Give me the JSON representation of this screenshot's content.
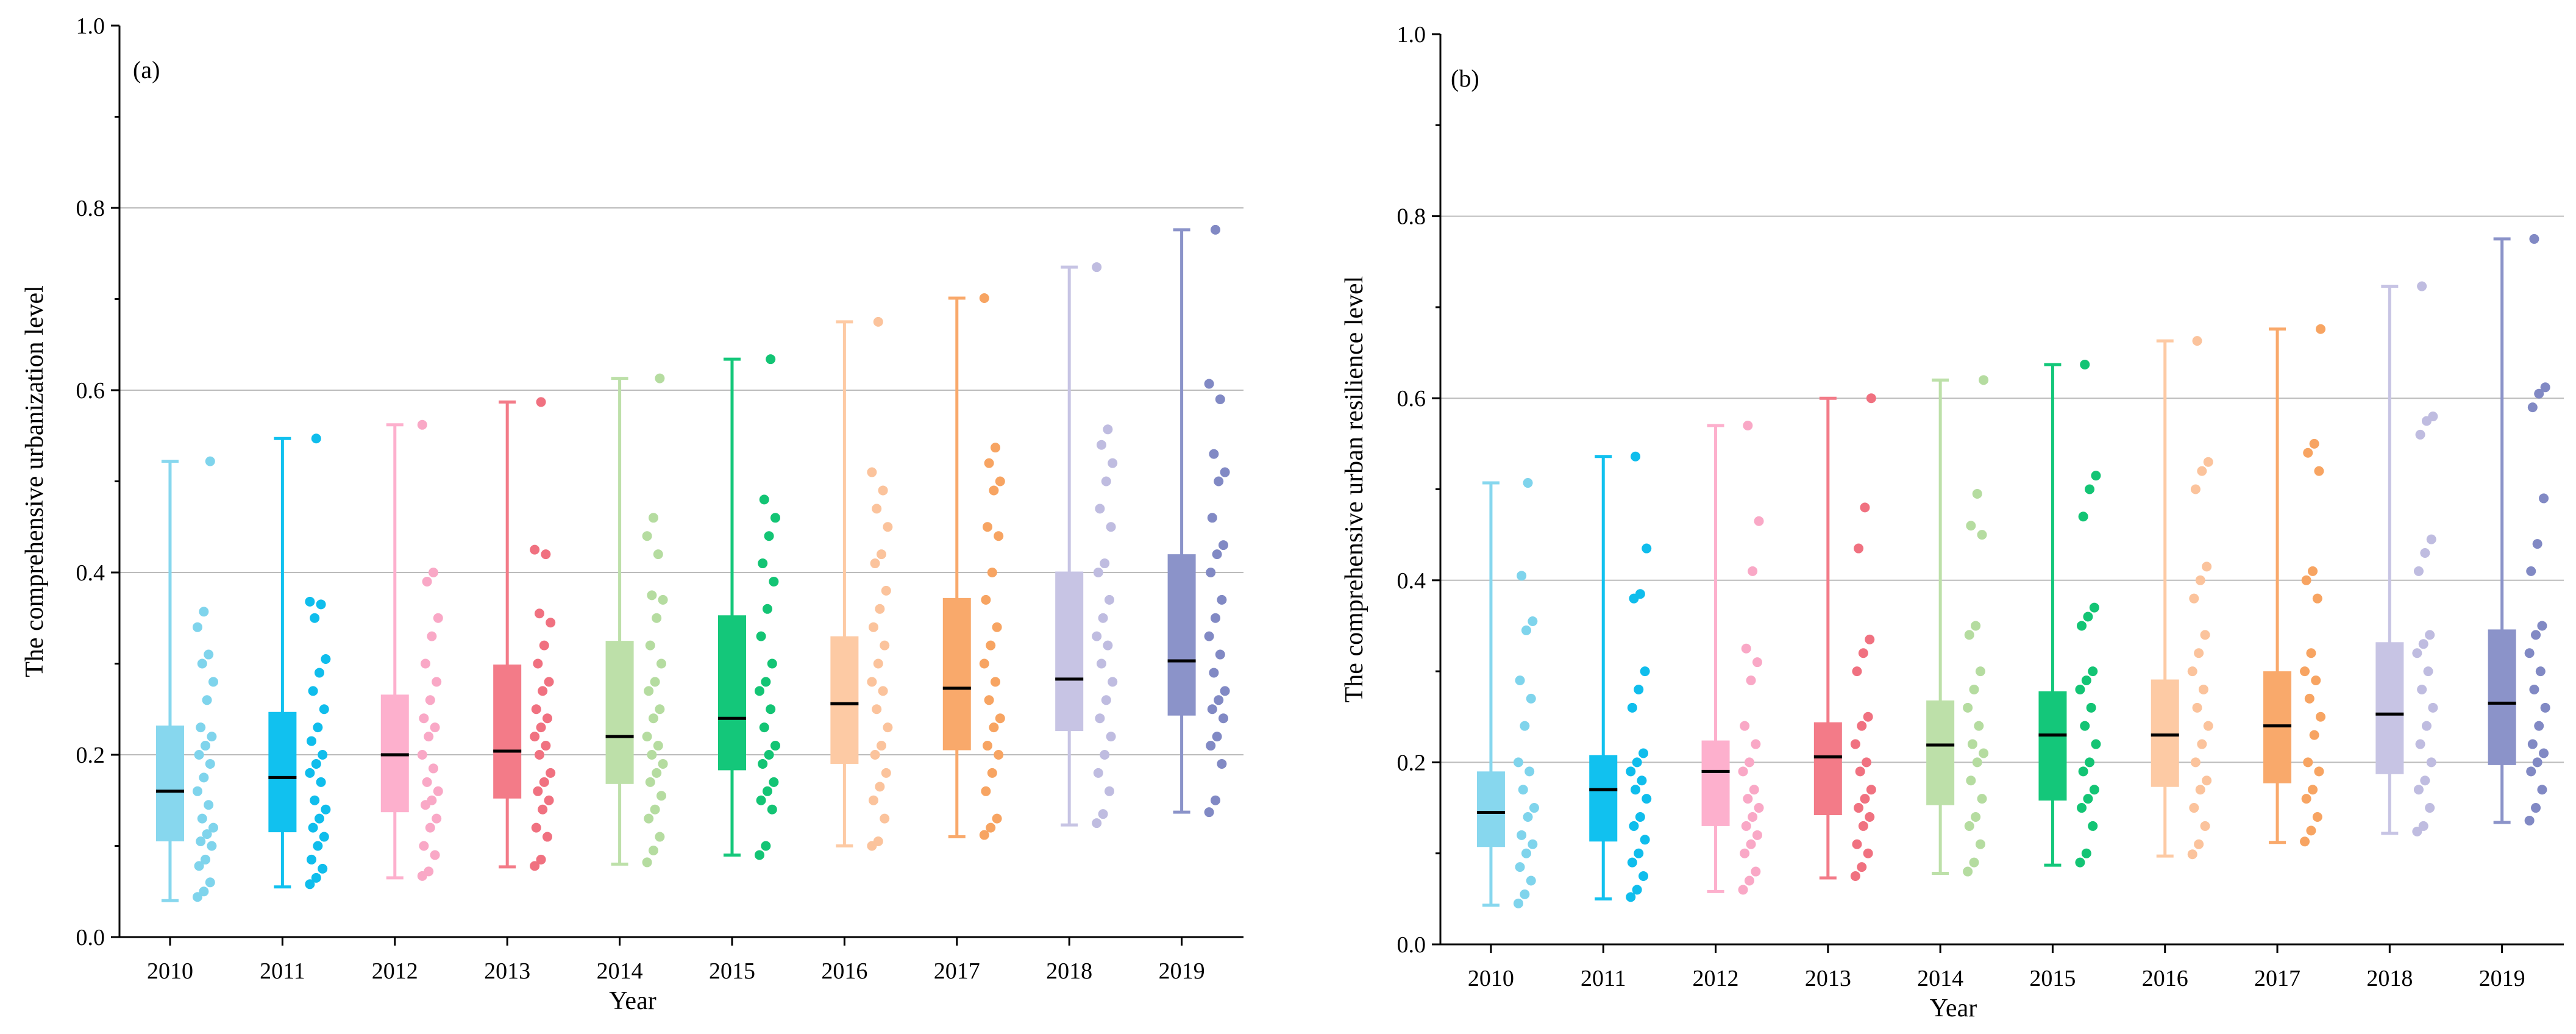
{
  "chart_data": [
    {
      "type": "box",
      "panel_label": "(a)",
      "xlabel": "Year",
      "ylabel": "The comprehensive urbanization level",
      "ylim": [
        0.0,
        1.0
      ],
      "yticks": [
        "0.0",
        "0.2",
        "0.4",
        "0.6",
        "0.8",
        "1.0"
      ],
      "categories": [
        "2010",
        "2011",
        "2012",
        "2013",
        "2014",
        "2015",
        "2016",
        "2017",
        "2018",
        "2019"
      ],
      "gridlines": [
        0.2,
        0.4,
        0.6,
        0.8
      ],
      "boxes": [
        {
          "year": "2010",
          "min": 0.04,
          "q1": 0.105,
          "median": 0.16,
          "q3": 0.232,
          "max": 0.522
        },
        {
          "year": "2011",
          "min": 0.055,
          "q1": 0.115,
          "median": 0.175,
          "q3": 0.247,
          "max": 0.547
        },
        {
          "year": "2012",
          "min": 0.065,
          "q1": 0.137,
          "median": 0.2,
          "q3": 0.266,
          "max": 0.562
        },
        {
          "year": "2013",
          "min": 0.077,
          "q1": 0.152,
          "median": 0.204,
          "q3": 0.299,
          "max": 0.587
        },
        {
          "year": "2014",
          "min": 0.08,
          "q1": 0.168,
          "median": 0.22,
          "q3": 0.325,
          "max": 0.613
        },
        {
          "year": "2015",
          "min": 0.09,
          "q1": 0.183,
          "median": 0.24,
          "q3": 0.353,
          "max": 0.634
        },
        {
          "year": "2016",
          "min": 0.1,
          "q1": 0.19,
          "median": 0.256,
          "q3": 0.33,
          "max": 0.675
        },
        {
          "year": "2017",
          "min": 0.11,
          "q1": 0.205,
          "median": 0.273,
          "q3": 0.372,
          "max": 0.701
        },
        {
          "year": "2018",
          "min": 0.123,
          "q1": 0.226,
          "median": 0.283,
          "q3": 0.401,
          "max": 0.735
        },
        {
          "year": "2019",
          "min": 0.137,
          "q1": 0.243,
          "median": 0.303,
          "q3": 0.42,
          "max": 0.776
        }
      ],
      "points": [
        [
          0.044,
          0.05,
          0.06,
          0.078,
          0.085,
          0.1,
          0.105,
          0.113,
          0.12,
          0.13,
          0.145,
          0.16,
          0.175,
          0.19,
          0.2,
          0.21,
          0.22,
          0.23,
          0.26,
          0.28,
          0.3,
          0.31,
          0.34,
          0.357,
          0.522
        ],
        [
          0.058,
          0.065,
          0.075,
          0.085,
          0.1,
          0.11,
          0.12,
          0.13,
          0.14,
          0.15,
          0.17,
          0.18,
          0.19,
          0.2,
          0.215,
          0.23,
          0.25,
          0.27,
          0.29,
          0.305,
          0.35,
          0.365,
          0.368,
          0.547
        ],
        [
          0.067,
          0.072,
          0.09,
          0.1,
          0.12,
          0.13,
          0.145,
          0.15,
          0.16,
          0.17,
          0.185,
          0.2,
          0.22,
          0.23,
          0.24,
          0.26,
          0.28,
          0.3,
          0.33,
          0.35,
          0.39,
          0.4,
          0.562
        ],
        [
          0.078,
          0.085,
          0.11,
          0.12,
          0.14,
          0.15,
          0.16,
          0.17,
          0.18,
          0.2,
          0.21,
          0.22,
          0.23,
          0.24,
          0.25,
          0.27,
          0.28,
          0.3,
          0.32,
          0.345,
          0.355,
          0.42,
          0.425,
          0.587
        ],
        [
          0.082,
          0.095,
          0.11,
          0.13,
          0.14,
          0.155,
          0.17,
          0.18,
          0.19,
          0.2,
          0.21,
          0.22,
          0.24,
          0.25,
          0.27,
          0.28,
          0.3,
          0.32,
          0.35,
          0.37,
          0.375,
          0.42,
          0.44,
          0.46,
          0.613
        ],
        [
          0.09,
          0.1,
          0.14,
          0.15,
          0.16,
          0.17,
          0.19,
          0.2,
          0.21,
          0.23,
          0.25,
          0.27,
          0.28,
          0.3,
          0.33,
          0.36,
          0.39,
          0.41,
          0.44,
          0.46,
          0.48,
          0.634
        ],
        [
          0.1,
          0.105,
          0.13,
          0.15,
          0.165,
          0.18,
          0.2,
          0.21,
          0.23,
          0.25,
          0.27,
          0.28,
          0.3,
          0.32,
          0.34,
          0.36,
          0.38,
          0.41,
          0.42,
          0.45,
          0.47,
          0.49,
          0.51,
          0.675
        ],
        [
          0.112,
          0.12,
          0.13,
          0.16,
          0.18,
          0.2,
          0.21,
          0.23,
          0.24,
          0.26,
          0.28,
          0.3,
          0.32,
          0.34,
          0.37,
          0.4,
          0.44,
          0.45,
          0.49,
          0.5,
          0.52,
          0.537,
          0.701
        ],
        [
          0.125,
          0.135,
          0.16,
          0.18,
          0.2,
          0.22,
          0.24,
          0.26,
          0.28,
          0.3,
          0.32,
          0.33,
          0.35,
          0.37,
          0.4,
          0.41,
          0.45,
          0.47,
          0.5,
          0.52,
          0.54,
          0.557,
          0.735
        ],
        [
          0.137,
          0.15,
          0.19,
          0.21,
          0.22,
          0.24,
          0.25,
          0.26,
          0.27,
          0.29,
          0.31,
          0.33,
          0.35,
          0.37,
          0.4,
          0.42,
          0.43,
          0.46,
          0.5,
          0.51,
          0.53,
          0.59,
          0.607,
          0.776
        ]
      ]
    },
    {
      "type": "box",
      "panel_label": "(b)",
      "xlabel": "Year",
      "ylabel": "The comprehensive urban resilience level",
      "ylim": [
        0.0,
        1.0
      ],
      "yticks": [
        "0.0",
        "0.2",
        "0.4",
        "0.6",
        "0.8",
        "1.0"
      ],
      "categories": [
        "2010",
        "2011",
        "2012",
        "2013",
        "2014",
        "2015",
        "2016",
        "2017",
        "2018",
        "2019"
      ],
      "gridlines": [
        0.2,
        0.4,
        0.6,
        0.8
      ],
      "boxes": [
        {
          "year": "2010",
          "min": 0.043,
          "q1": 0.107,
          "median": 0.145,
          "q3": 0.19,
          "max": 0.507
        },
        {
          "year": "2011",
          "min": 0.05,
          "q1": 0.113,
          "median": 0.17,
          "q3": 0.208,
          "max": 0.536
        },
        {
          "year": "2012",
          "min": 0.058,
          "q1": 0.13,
          "median": 0.19,
          "q3": 0.224,
          "max": 0.57
        },
        {
          "year": "2013",
          "min": 0.073,
          "q1": 0.142,
          "median": 0.206,
          "q3": 0.244,
          "max": 0.6
        },
        {
          "year": "2014",
          "min": 0.078,
          "q1": 0.153,
          "median": 0.219,
          "q3": 0.268,
          "max": 0.62
        },
        {
          "year": "2015",
          "min": 0.087,
          "q1": 0.158,
          "median": 0.23,
          "q3": 0.278,
          "max": 0.637
        },
        {
          "year": "2016",
          "min": 0.097,
          "q1": 0.173,
          "median": 0.23,
          "q3": 0.291,
          "max": 0.663
        },
        {
          "year": "2017",
          "min": 0.112,
          "q1": 0.177,
          "median": 0.24,
          "q3": 0.3,
          "max": 0.676
        },
        {
          "year": "2018",
          "min": 0.122,
          "q1": 0.187,
          "median": 0.253,
          "q3": 0.332,
          "max": 0.723
        },
        {
          "year": "2019",
          "min": 0.134,
          "q1": 0.197,
          "median": 0.265,
          "q3": 0.346,
          "max": 0.775
        }
      ],
      "points": [
        [
          0.045,
          0.055,
          0.07,
          0.085,
          0.1,
          0.11,
          0.12,
          0.14,
          0.15,
          0.17,
          0.19,
          0.2,
          0.24,
          0.27,
          0.29,
          0.345,
          0.355,
          0.405,
          0.507
        ],
        [
          0.052,
          0.06,
          0.075,
          0.09,
          0.1,
          0.115,
          0.13,
          0.14,
          0.16,
          0.17,
          0.18,
          0.19,
          0.2,
          0.21,
          0.26,
          0.28,
          0.3,
          0.38,
          0.385,
          0.435,
          0.536
        ],
        [
          0.06,
          0.07,
          0.08,
          0.1,
          0.11,
          0.12,
          0.13,
          0.14,
          0.15,
          0.16,
          0.17,
          0.19,
          0.2,
          0.22,
          0.24,
          0.29,
          0.31,
          0.325,
          0.41,
          0.465,
          0.57
        ],
        [
          0.075,
          0.085,
          0.1,
          0.11,
          0.13,
          0.14,
          0.15,
          0.16,
          0.17,
          0.19,
          0.2,
          0.22,
          0.24,
          0.25,
          0.3,
          0.32,
          0.335,
          0.435,
          0.48,
          0.6
        ],
        [
          0.08,
          0.09,
          0.11,
          0.13,
          0.14,
          0.16,
          0.18,
          0.2,
          0.21,
          0.22,
          0.24,
          0.26,
          0.28,
          0.3,
          0.34,
          0.35,
          0.45,
          0.46,
          0.495,
          0.62
        ],
        [
          0.09,
          0.1,
          0.13,
          0.15,
          0.16,
          0.17,
          0.19,
          0.2,
          0.22,
          0.24,
          0.26,
          0.28,
          0.29,
          0.3,
          0.35,
          0.36,
          0.37,
          0.47,
          0.5,
          0.515,
          0.637
        ],
        [
          0.099,
          0.11,
          0.13,
          0.15,
          0.17,
          0.18,
          0.2,
          0.22,
          0.24,
          0.26,
          0.28,
          0.3,
          0.32,
          0.34,
          0.38,
          0.4,
          0.415,
          0.5,
          0.52,
          0.53,
          0.663
        ],
        [
          0.113,
          0.125,
          0.14,
          0.16,
          0.17,
          0.19,
          0.2,
          0.23,
          0.25,
          0.27,
          0.29,
          0.3,
          0.32,
          0.38,
          0.4,
          0.41,
          0.52,
          0.54,
          0.55,
          0.676
        ],
        [
          0.124,
          0.13,
          0.15,
          0.17,
          0.18,
          0.2,
          0.22,
          0.24,
          0.26,
          0.28,
          0.3,
          0.32,
          0.33,
          0.34,
          0.41,
          0.43,
          0.445,
          0.56,
          0.575,
          0.58,
          0.723
        ],
        [
          0.136,
          0.15,
          0.17,
          0.19,
          0.2,
          0.21,
          0.22,
          0.24,
          0.26,
          0.28,
          0.3,
          0.32,
          0.34,
          0.35,
          0.41,
          0.44,
          0.49,
          0.59,
          0.605,
          0.612,
          0.775
        ]
      ]
    }
  ],
  "palette": {
    "box_colors": [
      "#87d7ee",
      "#11c1ef",
      "#fdb0cd",
      "#f37b88",
      "#bde0a9",
      "#14c77a",
      "#fdcaa4",
      "#f9a96b",
      "#c7c4e4",
      "#8b93c9"
    ],
    "point_colors": [
      "#7fd4ec",
      "#0fbdec",
      "#f9a8c6",
      "#f07180",
      "#b5dca0",
      "#13c474",
      "#fbc39c",
      "#f7a462",
      "#bfbce0",
      "#8189c4"
    ],
    "grid_color": "#bbbbbb",
    "axis_color": "#000000",
    "median_color": "#000000"
  }
}
